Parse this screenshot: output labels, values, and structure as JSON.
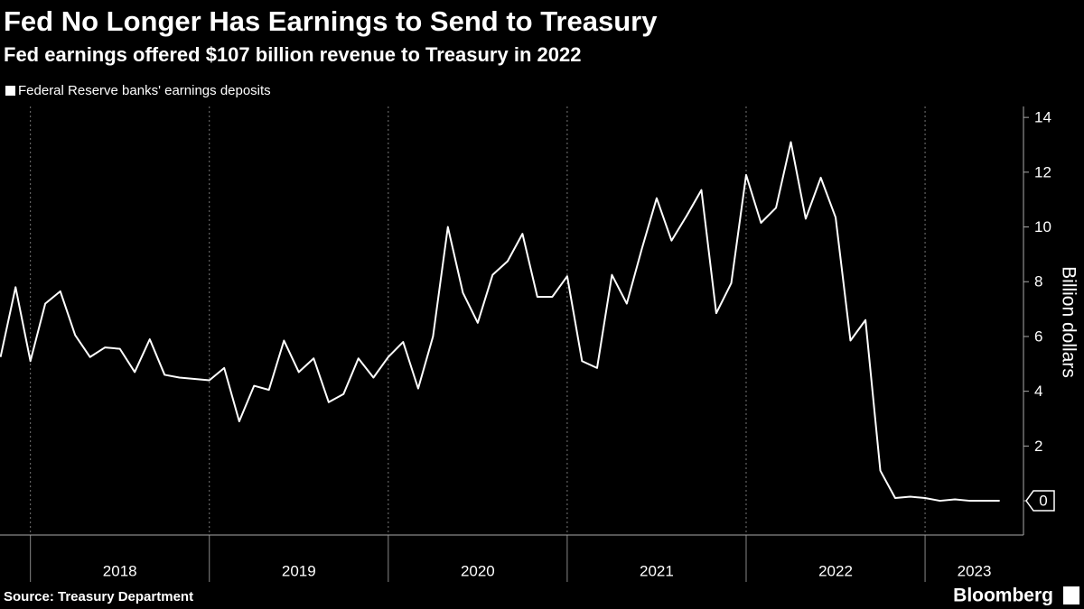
{
  "chart_data": {
    "type": "line",
    "title": "Fed No Longer Has Earnings to Send to Treasury",
    "subtitle": "Fed earnings offered $107 billion revenue to Treasury in 2022",
    "y_label": "Billion dollars",
    "source": "Source: Treasury Department",
    "brand": "Bloomberg",
    "grid": true,
    "x": [
      2017.833,
      2017.917,
      2018.0,
      2018.083,
      2018.167,
      2018.25,
      2018.333,
      2018.417,
      2018.5,
      2018.583,
      2018.667,
      2018.75,
      2018.833,
      2018.917,
      2019.0,
      2019.083,
      2019.167,
      2019.25,
      2019.333,
      2019.417,
      2019.5,
      2019.583,
      2019.667,
      2019.75,
      2019.833,
      2019.917,
      2020.0,
      2020.083,
      2020.167,
      2020.25,
      2020.333,
      2020.417,
      2020.5,
      2020.583,
      2020.667,
      2020.75,
      2020.833,
      2020.917,
      2021.0,
      2021.083,
      2021.167,
      2021.25,
      2021.333,
      2021.417,
      2021.5,
      2021.583,
      2021.667,
      2021.75,
      2021.833,
      2021.917,
      2022.0,
      2022.083,
      2022.167,
      2022.25,
      2022.333,
      2022.417,
      2022.5,
      2022.583,
      2022.667,
      2022.75,
      2022.833,
      2022.917,
      2023.0,
      2023.083,
      2023.167,
      2023.25,
      2023.333,
      2023.417
    ],
    "series": [
      {
        "name": "Federal Reserve banks' earnings deposits",
        "color": "#ffffff",
        "values": [
          5.25,
          7.8,
          5.1,
          7.2,
          7.65,
          6.05,
          5.25,
          5.6,
          5.55,
          4.7,
          5.9,
          4.6,
          4.5,
          4.45,
          4.4,
          4.85,
          2.9,
          4.2,
          4.05,
          5.85,
          4.7,
          5.2,
          3.6,
          3.9,
          5.2,
          4.5,
          5.25,
          5.8,
          4.1,
          6.0,
          10.0,
          7.6,
          6.5,
          8.25,
          8.75,
          9.75,
          7.45,
          7.45,
          8.2,
          5.1,
          4.85,
          8.25,
          7.2,
          9.2,
          11.05,
          9.5,
          10.4,
          11.35,
          6.85,
          7.95,
          11.9,
          10.15,
          10.7,
          13.1,
          10.3,
          11.8,
          10.35,
          5.85,
          6.6,
          1.1,
          0.1,
          0.15,
          0.1,
          0.0,
          0.05,
          0.0,
          0.0,
          0.0
        ]
      }
    ],
    "xlim": [
      2017.83,
      2023.55
    ],
    "xticks": [
      {
        "value": 2018,
        "label": "2018"
      },
      {
        "value": 2019,
        "label": "2019"
      },
      {
        "value": 2020,
        "label": "2020"
      },
      {
        "value": 2021,
        "label": "2021"
      },
      {
        "value": 2022,
        "label": "2022"
      },
      {
        "value": 2023,
        "label": "2023"
      }
    ],
    "ylim": [
      -1.25,
      14.4
    ],
    "yticks": [
      0,
      2,
      4,
      6,
      8,
      10,
      12,
      14
    ]
  }
}
